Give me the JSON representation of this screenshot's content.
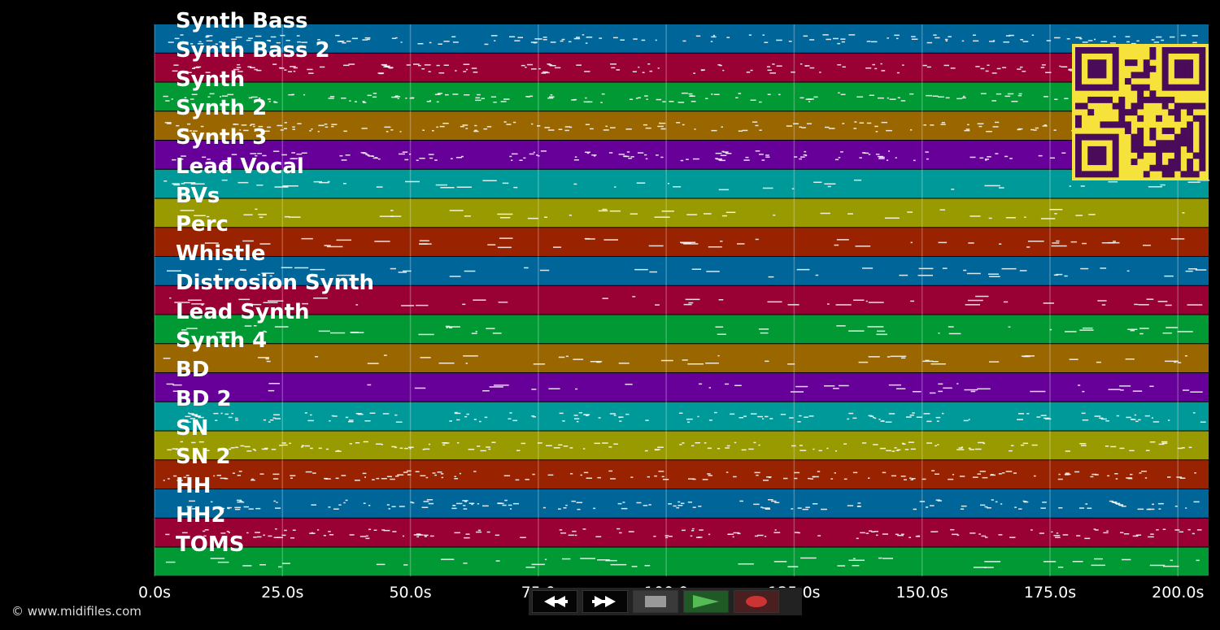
{
  "tracks": [
    {
      "name": "Synth Bass",
      "color": "#006699"
    },
    {
      "name": "Synth Bass 2",
      "color": "#990033"
    },
    {
      "name": "Synth",
      "color": "#009933"
    },
    {
      "name": "Synth 2",
      "color": "#996600"
    },
    {
      "name": "Synth 3",
      "color": "#660099"
    },
    {
      "name": "Lead Vocal",
      "color": "#009999"
    },
    {
      "name": "BVs",
      "color": "#999900"
    },
    {
      "name": "Perc",
      "color": "#992200"
    },
    {
      "name": "Whistle",
      "color": "#006699"
    },
    {
      "name": "Distrosion Synth",
      "color": "#990033"
    },
    {
      "name": "Lead Synth",
      "color": "#009933"
    },
    {
      "name": "Synth 4",
      "color": "#996600"
    },
    {
      "name": "BD",
      "color": "#660099"
    },
    {
      "name": "BD 2",
      "color": "#009999"
    },
    {
      "name": "SN",
      "color": "#999900"
    },
    {
      "name": "SN 2",
      "color": "#992200"
    },
    {
      "name": "HH",
      "color": "#006699"
    },
    {
      "name": "HH2",
      "color": "#990033"
    },
    {
      "name": "TOMS",
      "color": "#009933"
    }
  ],
  "timeline": {
    "max_seconds": 206,
    "ticks": [
      "0.0s",
      "25.0s",
      "50.0s",
      "75.0",
      "100.0",
      "125.0s",
      "150.0s",
      "175.0s",
      "200.0s"
    ],
    "tick_values": [
      0,
      25,
      50,
      75,
      100,
      125,
      150,
      175,
      200
    ]
  },
  "transport": {
    "rewind_icon": "rewind-icon",
    "forward_icon": "fast-forward-icon",
    "stop_icon": "stop-icon",
    "play_icon": "play-icon",
    "record_icon": "record-icon",
    "play_color": "#55bb55",
    "record_color": "#cc3333"
  },
  "qr": {
    "icon": "qr-code-icon",
    "fg": "#4a0b5a",
    "bg": "#f5e23a"
  },
  "copyright": "© www.midifiles.com"
}
